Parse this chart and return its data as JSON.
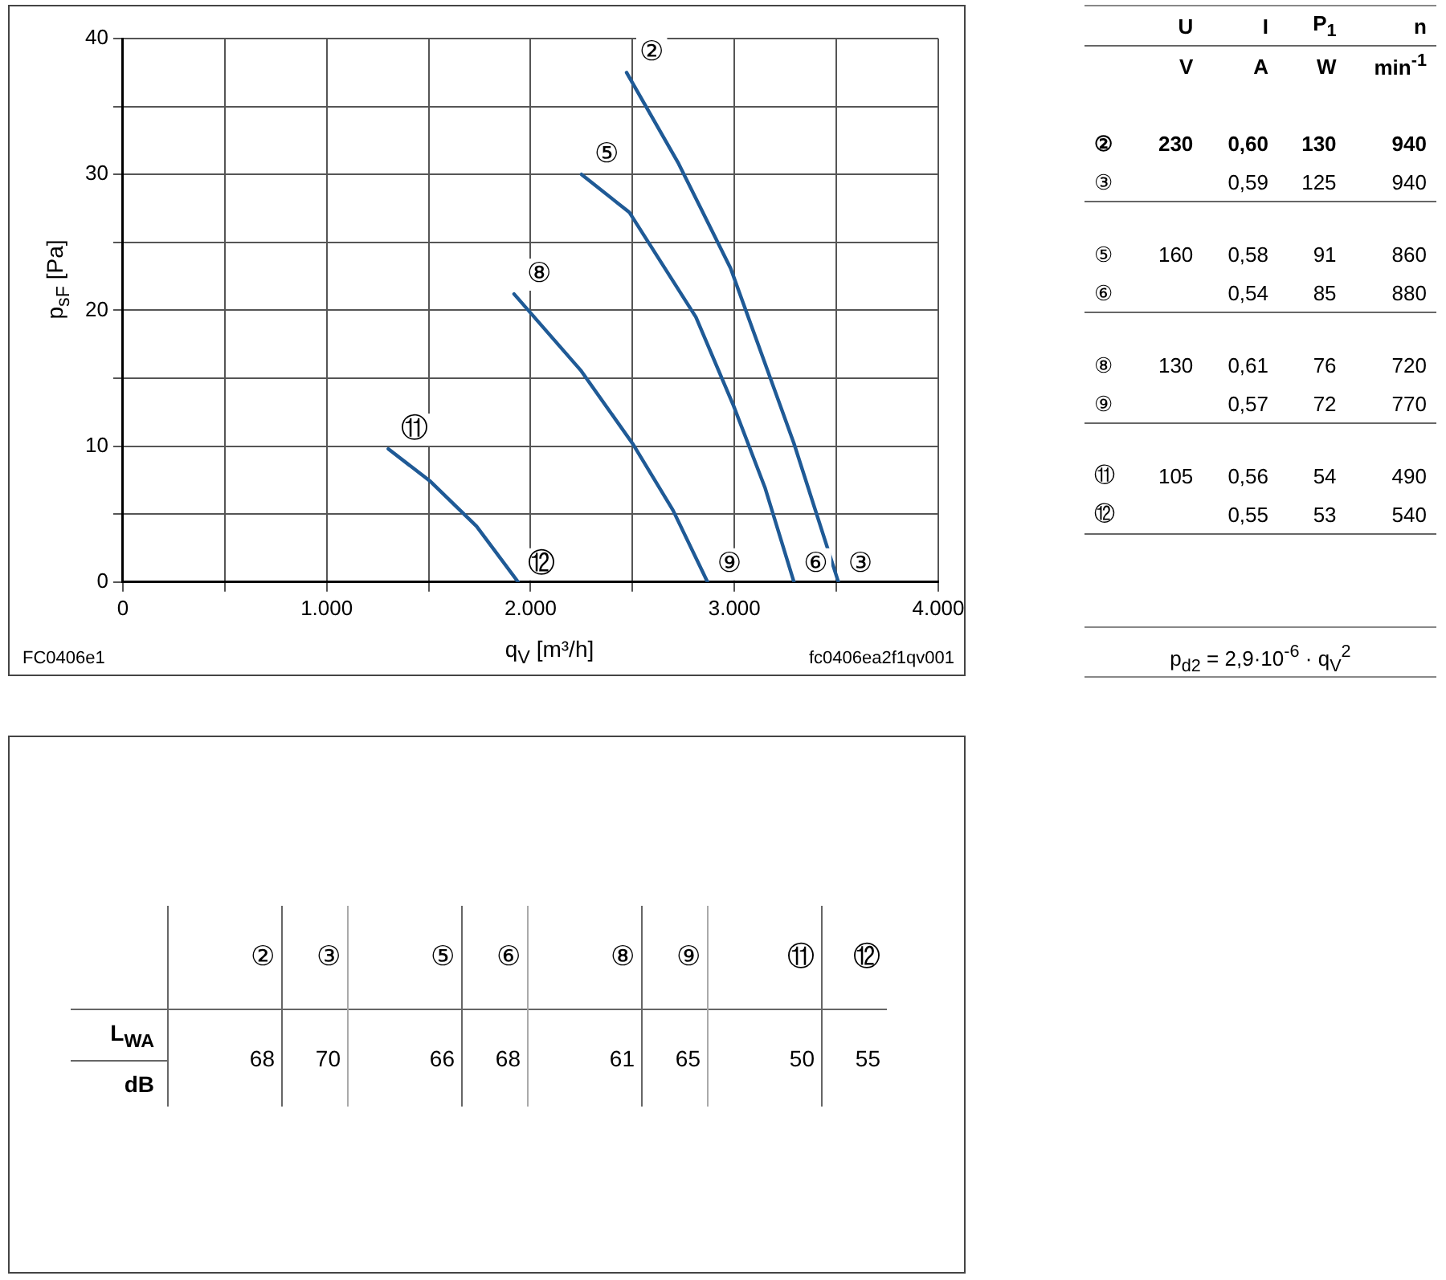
{
  "chart_data": [
    {
      "type": "line",
      "xlabel": "q$_{V}$ [m³/h]",
      "ylabel": "p$_{sF}$ [Pa]",
      "xlim": [
        0,
        4000
      ],
      "ylim": [
        0,
        40
      ],
      "xticks": [
        0,
        {
          "value": 500,
          "label": null
        },
        {
          "value": 1000,
          "label": "1.000"
        },
        {
          "value": 1500,
          "label": null
        },
        {
          "value": 2000,
          "label": "2.000"
        },
        {
          "value": 2500,
          "label": null
        },
        {
          "value": 3000,
          "label": "3.000"
        },
        {
          "value": 3500,
          "label": null
        },
        {
          "value": 4000,
          "label": "4.000"
        }
      ],
      "yticks": [
        0,
        {
          "value": 5,
          "label": null
        },
        10,
        {
          "value": 15,
          "label": null
        },
        20,
        {
          "value": 25,
          "label": null
        },
        30,
        {
          "value": 35,
          "label": null
        },
        40
      ],
      "grid": true,
      "legend": false,
      "series": [
        {
          "color": "#1f5a96",
          "x": [
            2471,
            2726,
            2981,
            3292,
            3510
          ],
          "values": [
            37.5,
            30.8,
            23.1,
            10.2,
            0
          ]
        },
        {
          "color": "#1f5a96",
          "x": [
            2250,
            2485,
            2811,
            2995,
            3151,
            3292
          ],
          "values": [
            30.0,
            27.2,
            19.5,
            13.0,
            6.9,
            0
          ]
        },
        {
          "color": "#1f5a96",
          "x": [
            1919,
            2245,
            2500,
            2698,
            2868
          ],
          "values": [
            21.2,
            15.6,
            10.2,
            5.3,
            0
          ]
        },
        {
          "color": "#1f5a96",
          "x": [
            1302,
            1509,
            1735,
            1939
          ],
          "values": [
            9.8,
            7.4,
            4.1,
            0
          ]
        }
      ],
      "annotations": [
        {
          "text": "②",
          "x": 2471,
          "y": 37.5
        },
        {
          "text": "③",
          "x": 3510,
          "y": 0
        },
        {
          "text": "⑤",
          "x": 2250,
          "y": 30
        },
        {
          "text": "⑥",
          "x": 3292,
          "y": 0
        },
        {
          "text": "⑧",
          "x": 1919,
          "y": 21.2
        },
        {
          "text": "⑨",
          "x": 2868,
          "y": 0
        },
        {
          "text": "⑪",
          "x": 1302,
          "y": 9.8
        },
        {
          "text": "⑫",
          "x": 1939,
          "y": 0
        },
        "FC0406e1",
        "fc0406ea2f1qv001"
      ]
    },
    {
      "type": "other",
      "annotations": [
        null,
        "U",
        "I",
        "P$_{1}$",
        "n",
        null,
        "V",
        "A",
        "W",
        "min$^{-1}$",
        "②",
        "230",
        "0,60",
        "130",
        "940",
        "③",
        null,
        "0,59",
        "125",
        "940",
        "⑤",
        "160",
        "0,58",
        "91",
        "860",
        "⑥",
        null,
        "0,54",
        "85",
        "880",
        "⑧",
        "130",
        "0,61",
        "76",
        "720",
        "⑨",
        null,
        "0,57",
        "72",
        "770",
        "⑪",
        "105",
        "0,56",
        "54",
        "490",
        "⑫",
        null,
        "0,55",
        "53",
        "540",
        "p$_{d2}$ = 2,9·10$^{-6}$ · q$_{V}$$^{2}$"
      ]
    },
    {
      "type": "other",
      "annotations": [
        "②",
        "③",
        "⑤",
        "⑥",
        "⑧",
        "⑨",
        "⑪",
        "⑫",
        "L$_{WA}$",
        "dB",
        "68",
        "70",
        "66",
        "68",
        "61",
        "65",
        "50",
        "55"
      ]
    }
  ]
}
